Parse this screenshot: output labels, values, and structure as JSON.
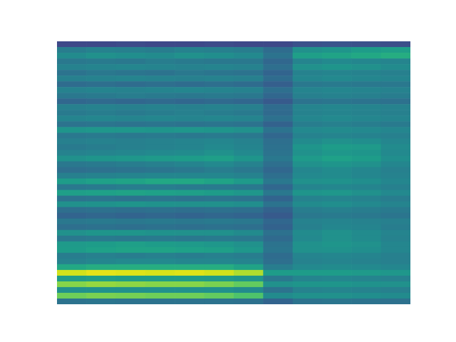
{
  "chart_data": {
    "type": "heatmap",
    "tick_labels": false,
    "zlim": [
      0,
      1
    ],
    "cells": [
      [
        0.22,
        0.22,
        0.23,
        0.22,
        0.22,
        0.23,
        0.22,
        0.22,
        0.25,
        0.26,
        0.25,
        0.24
      ],
      [
        0.42,
        0.44,
        0.43,
        0.42,
        0.44,
        0.43,
        0.42,
        0.35,
        0.5,
        0.52,
        0.55,
        0.56
      ],
      [
        0.48,
        0.5,
        0.49,
        0.48,
        0.5,
        0.49,
        0.47,
        0.38,
        0.56,
        0.58,
        0.6,
        0.62
      ],
      [
        0.4,
        0.41,
        0.4,
        0.42,
        0.41,
        0.4,
        0.4,
        0.33,
        0.45,
        0.47,
        0.46,
        0.45
      ],
      [
        0.44,
        0.45,
        0.46,
        0.45,
        0.44,
        0.45,
        0.44,
        0.36,
        0.5,
        0.52,
        0.5,
        0.48
      ],
      [
        0.38,
        0.4,
        0.39,
        0.38,
        0.4,
        0.39,
        0.38,
        0.32,
        0.44,
        0.45,
        0.44,
        0.43
      ],
      [
        0.43,
        0.44,
        0.45,
        0.44,
        0.43,
        0.44,
        0.43,
        0.35,
        0.46,
        0.47,
        0.46,
        0.45
      ],
      [
        0.35,
        0.36,
        0.35,
        0.36,
        0.35,
        0.36,
        0.35,
        0.3,
        0.4,
        0.41,
        0.4,
        0.4
      ],
      [
        0.44,
        0.45,
        0.44,
        0.45,
        0.46,
        0.45,
        0.44,
        0.36,
        0.45,
        0.46,
        0.45,
        0.44
      ],
      [
        0.4,
        0.41,
        0.42,
        0.41,
        0.4,
        0.41,
        0.4,
        0.33,
        0.43,
        0.44,
        0.43,
        0.42
      ],
      [
        0.33,
        0.34,
        0.33,
        0.34,
        0.33,
        0.34,
        0.33,
        0.28,
        0.38,
        0.39,
        0.38,
        0.37
      ],
      [
        0.43,
        0.44,
        0.43,
        0.44,
        0.43,
        0.44,
        0.43,
        0.35,
        0.45,
        0.46,
        0.45,
        0.44
      ],
      [
        0.41,
        0.42,
        0.41,
        0.42,
        0.43,
        0.42,
        0.41,
        0.34,
        0.44,
        0.45,
        0.44,
        0.43
      ],
      [
        0.45,
        0.46,
        0.45,
        0.46,
        0.45,
        0.46,
        0.45,
        0.37,
        0.46,
        0.47,
        0.46,
        0.45
      ],
      [
        0.38,
        0.39,
        0.38,
        0.39,
        0.38,
        0.39,
        0.38,
        0.31,
        0.42,
        0.43,
        0.42,
        0.41
      ],
      [
        0.52,
        0.53,
        0.53,
        0.52,
        0.53,
        0.52,
        0.5,
        0.38,
        0.47,
        0.48,
        0.47,
        0.46
      ],
      [
        0.4,
        0.41,
        0.4,
        0.41,
        0.4,
        0.41,
        0.4,
        0.33,
        0.44,
        0.45,
        0.44,
        0.43
      ],
      [
        0.43,
        0.44,
        0.43,
        0.44,
        0.45,
        0.46,
        0.44,
        0.36,
        0.48,
        0.5,
        0.49,
        0.46
      ],
      [
        0.41,
        0.42,
        0.43,
        0.44,
        0.45,
        0.47,
        0.45,
        0.37,
        0.52,
        0.55,
        0.54,
        0.48
      ],
      [
        0.44,
        0.45,
        0.46,
        0.47,
        0.48,
        0.5,
        0.47,
        0.38,
        0.5,
        0.53,
        0.52,
        0.47
      ],
      [
        0.5,
        0.52,
        0.53,
        0.54,
        0.55,
        0.56,
        0.52,
        0.4,
        0.54,
        0.57,
        0.55,
        0.49
      ],
      [
        0.4,
        0.41,
        0.42,
        0.43,
        0.45,
        0.47,
        0.44,
        0.36,
        0.5,
        0.52,
        0.5,
        0.46
      ],
      [
        0.36,
        0.37,
        0.38,
        0.39,
        0.4,
        0.42,
        0.4,
        0.33,
        0.46,
        0.48,
        0.46,
        0.43
      ],
      [
        0.43,
        0.44,
        0.45,
        0.46,
        0.46,
        0.46,
        0.44,
        0.36,
        0.47,
        0.48,
        0.46,
        0.44
      ],
      [
        0.55,
        0.57,
        0.58,
        0.6,
        0.6,
        0.58,
        0.54,
        0.4,
        0.5,
        0.51,
        0.49,
        0.46
      ],
      [
        0.4,
        0.41,
        0.42,
        0.42,
        0.41,
        0.41,
        0.4,
        0.33,
        0.45,
        0.46,
        0.45,
        0.43
      ],
      [
        0.56,
        0.57,
        0.58,
        0.57,
        0.56,
        0.55,
        0.53,
        0.4,
        0.52,
        0.53,
        0.5,
        0.47
      ],
      [
        0.38,
        0.39,
        0.38,
        0.39,
        0.38,
        0.39,
        0.38,
        0.32,
        0.44,
        0.45,
        0.44,
        0.42
      ],
      [
        0.5,
        0.51,
        0.52,
        0.51,
        0.5,
        0.5,
        0.49,
        0.38,
        0.48,
        0.49,
        0.47,
        0.45
      ],
      [
        0.36,
        0.37,
        0.36,
        0.37,
        0.36,
        0.37,
        0.36,
        0.31,
        0.42,
        0.43,
        0.42,
        0.41
      ],
      [
        0.32,
        0.33,
        0.32,
        0.33,
        0.32,
        0.33,
        0.32,
        0.28,
        0.4,
        0.41,
        0.4,
        0.39
      ],
      [
        0.4,
        0.41,
        0.4,
        0.41,
        0.4,
        0.41,
        0.4,
        0.33,
        0.44,
        0.45,
        0.44,
        0.43
      ],
      [
        0.36,
        0.37,
        0.36,
        0.37,
        0.36,
        0.37,
        0.36,
        0.31,
        0.43,
        0.46,
        0.45,
        0.42
      ],
      [
        0.5,
        0.52,
        0.52,
        0.51,
        0.5,
        0.5,
        0.48,
        0.37,
        0.48,
        0.5,
        0.48,
        0.45
      ],
      [
        0.4,
        0.41,
        0.4,
        0.41,
        0.4,
        0.41,
        0.4,
        0.34,
        0.47,
        0.5,
        0.48,
        0.44
      ],
      [
        0.54,
        0.55,
        0.56,
        0.55,
        0.54,
        0.53,
        0.5,
        0.38,
        0.5,
        0.52,
        0.5,
        0.46
      ],
      [
        0.55,
        0.57,
        0.58,
        0.58,
        0.57,
        0.56,
        0.53,
        0.39,
        0.5,
        0.51,
        0.49,
        0.46
      ],
      [
        0.42,
        0.43,
        0.42,
        0.43,
        0.42,
        0.43,
        0.42,
        0.35,
        0.45,
        0.46,
        0.45,
        0.43
      ],
      [
        0.44,
        0.46,
        0.47,
        0.47,
        0.46,
        0.46,
        0.45,
        0.36,
        0.44,
        0.45,
        0.44,
        0.43
      ],
      [
        0.6,
        0.62,
        0.62,
        0.62,
        0.62,
        0.62,
        0.58,
        0.42,
        0.47,
        0.48,
        0.47,
        0.46
      ],
      [
        0.93,
        0.96,
        0.95,
        0.94,
        0.95,
        0.93,
        0.88,
        0.55,
        0.55,
        0.55,
        0.54,
        0.53
      ],
      [
        0.55,
        0.56,
        0.55,
        0.55,
        0.55,
        0.54,
        0.52,
        0.4,
        0.45,
        0.46,
        0.45,
        0.44
      ],
      [
        0.82,
        0.84,
        0.83,
        0.82,
        0.82,
        0.8,
        0.76,
        0.5,
        0.52,
        0.52,
        0.51,
        0.5
      ],
      [
        0.5,
        0.51,
        0.5,
        0.5,
        0.5,
        0.5,
        0.48,
        0.38,
        0.44,
        0.45,
        0.44,
        0.43
      ],
      [
        0.78,
        0.8,
        0.79,
        0.78,
        0.78,
        0.76,
        0.72,
        0.48,
        0.5,
        0.5,
        0.49,
        0.48
      ],
      [
        0.38,
        0.39,
        0.38,
        0.38,
        0.38,
        0.38,
        0.37,
        0.32,
        0.38,
        0.39,
        0.38,
        0.37
      ]
    ]
  }
}
